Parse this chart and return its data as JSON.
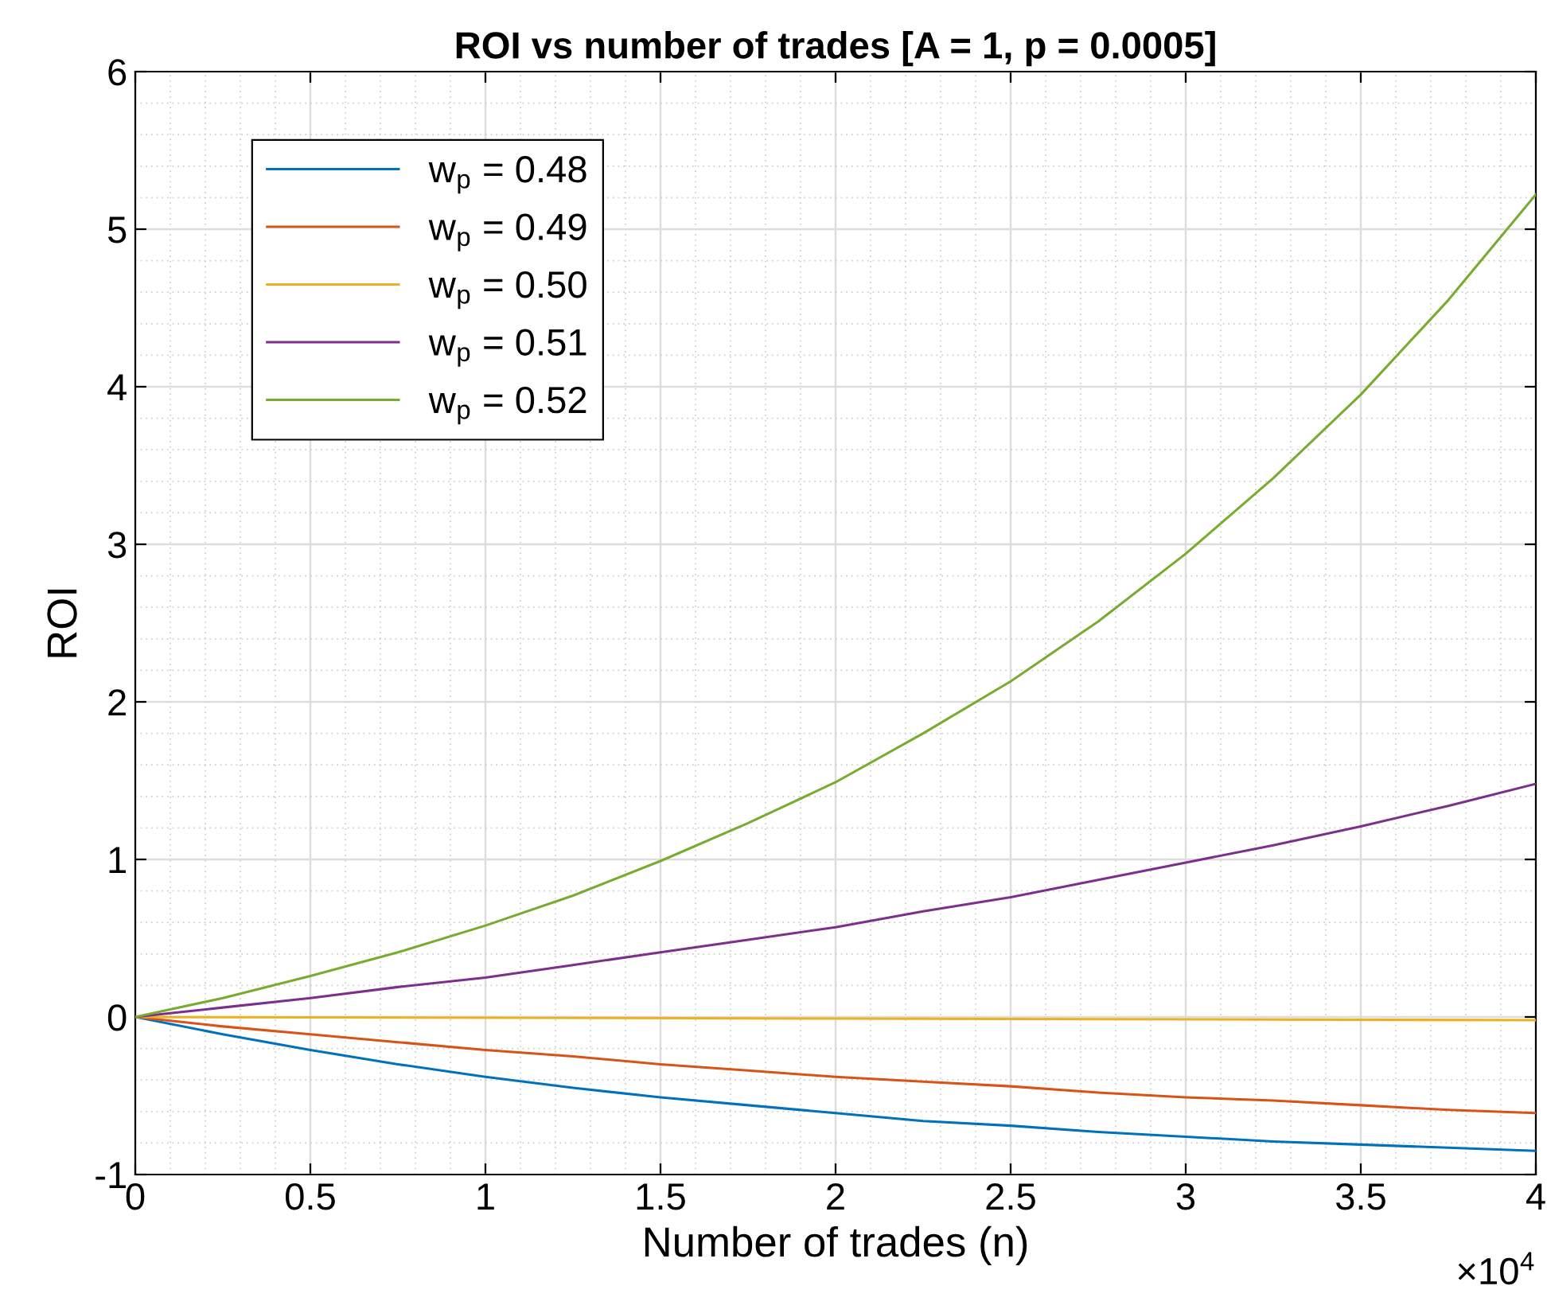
{
  "chart_data": {
    "type": "line",
    "title": "ROI vs number of trades [A = 1, p = 0.0005]",
    "xlabel": "Number of trades (n)",
    "ylabel": "ROI",
    "x": [
      0,
      0.25,
      0.5,
      0.75,
      1,
      1.25,
      1.5,
      1.75,
      2,
      2.25,
      2.5,
      2.75,
      3,
      3.25,
      3.5,
      3.75,
      4
    ],
    "series": [
      {
        "name": "w$_{p}$ = 0.48",
        "color": "#0072bd",
        "values": [
          0,
          -0.11,
          -0.21,
          -0.3,
          -0.38,
          -0.45,
          -0.51,
          -0.56,
          -0.61,
          -0.66,
          -0.69,
          -0.73,
          -0.76,
          -0.79,
          -0.81,
          -0.83,
          -0.85
        ]
      },
      {
        "name": "w$_{p}$ = 0.49",
        "color": "#d95319",
        "values": [
          0,
          -0.06,
          -0.11,
          -0.16,
          -0.21,
          -0.25,
          -0.3,
          -0.34,
          -0.38,
          -0.41,
          -0.44,
          -0.48,
          -0.51,
          -0.53,
          -0.56,
          -0.59,
          -0.61
        ]
      },
      {
        "name": "w$_{p}$ = 0.50",
        "color": "#edb120",
        "x": [
          0,
          2,
          4
        ],
        "values": [
          0,
          -0.01,
          -0.02
        ]
      },
      {
        "name": "w$_{p}$ = 0.51",
        "color": "#7e2f8e",
        "values": [
          0,
          0.06,
          0.12,
          0.19,
          0.25,
          0.33,
          0.41,
          0.49,
          0.57,
          0.67,
          0.76,
          0.87,
          0.98,
          1.09,
          1.21,
          1.34,
          1.48
        ]
      },
      {
        "name": "w$_{p}$ = 0.52",
        "color": "#77ac30",
        "values": [
          0,
          0.12,
          0.26,
          0.41,
          0.58,
          0.77,
          0.99,
          1.23,
          1.49,
          1.8,
          2.13,
          2.51,
          2.94,
          3.42,
          3.95,
          4.55,
          5.22
        ]
      }
    ],
    "xlim": [
      0,
      4
    ],
    "xticks": [
      0,
      0.5,
      1,
      1.5,
      2,
      2.5,
      3,
      3.5,
      4
    ],
    "ylim": [
      -1,
      6
    ],
    "yticks": [
      -1,
      0,
      1,
      2,
      3,
      4,
      5,
      6
    ],
    "annotations": [
      "×10$^{4}$"
    ],
    "grid": true,
    "legend": "top left"
  }
}
